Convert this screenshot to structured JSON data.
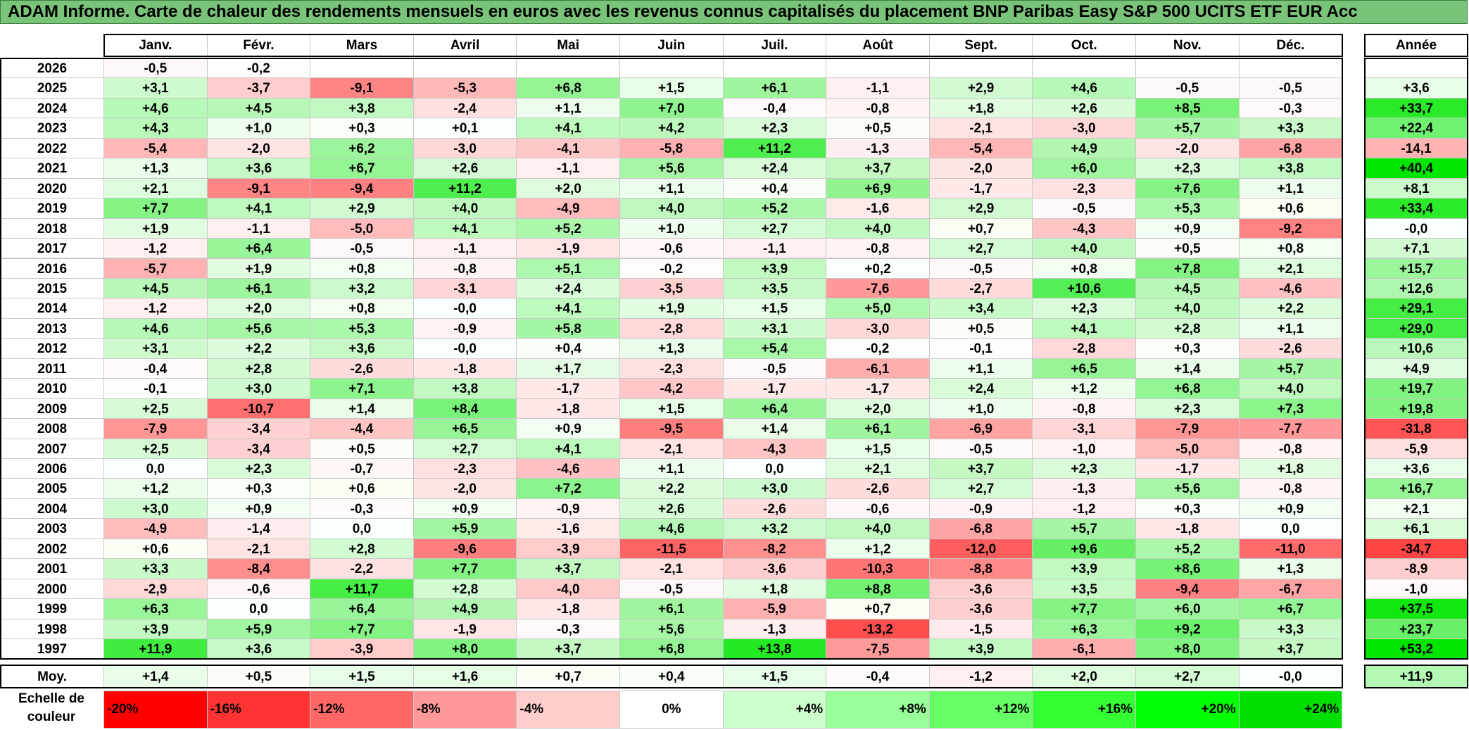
{
  "title": "ADAM Informe. Carte de chaleur des rendements mensuels en euros avec les revenus connus capitalisés du placement BNP Paribas Easy S&P 500 UCITS ETF EUR Acc",
  "chart_data": {
    "type": "heatmap",
    "title": "ADAM Informe. Carte de chaleur des rendements mensuels en euros avec les revenus connus capitalisés du placement BNP Paribas Easy S&P 500 UCITS ETF EUR Acc",
    "columns": [
      "Janv.",
      "Févr.",
      "Mars",
      "Avril",
      "Mai",
      "Juin",
      "Juil.",
      "Août",
      "Sept.",
      "Oct.",
      "Nov.",
      "Déc."
    ],
    "year_column": "Année",
    "rows": [
      {
        "year": "2026",
        "months": [
          "-0,5",
          "-0,2",
          "",
          "",
          "",
          "",
          "",
          "",
          "",
          "",
          "",
          ""
        ],
        "annual": ""
      },
      {
        "year": "2025",
        "months": [
          "+3,1",
          "-3,7",
          "-9,1",
          "-5,3",
          "+6,8",
          "+1,5",
          "+6,1",
          "-1,1",
          "+2,9",
          "+4,6",
          "-0,5",
          "-0,5"
        ],
        "annual": "+3,6"
      },
      {
        "year": "2024",
        "months": [
          "+4,6",
          "+4,5",
          "+3,8",
          "-2,4",
          "+1,1",
          "+7,0",
          "-0,4",
          "-0,8",
          "+1,8",
          "+2,6",
          "+8,5",
          "-0,3"
        ],
        "annual": "+33,7"
      },
      {
        "year": "2023",
        "months": [
          "+4,3",
          "+1,0",
          "+0,3",
          "+0,1",
          "+4,1",
          "+4,2",
          "+2,3",
          "+0,5",
          "-2,1",
          "-3,0",
          "+5,7",
          "+3,3"
        ],
        "annual": "+22,4"
      },
      {
        "year": "2022",
        "months": [
          "-5,4",
          "-2,0",
          "+6,2",
          "-3,0",
          "-4,1",
          "-5,8",
          "+11,2",
          "-1,3",
          "-5,4",
          "+4,9",
          "-2,0",
          "-6,8"
        ],
        "annual": "-14,1"
      },
      {
        "year": "2021",
        "months": [
          "+1,3",
          "+3,6",
          "+6,7",
          "+2,6",
          "-1,1",
          "+5,6",
          "+2,4",
          "+3,7",
          "-2,0",
          "+6,0",
          "+2,3",
          "+3,8"
        ],
        "annual": "+40,4"
      },
      {
        "year": "2020",
        "months": [
          "+2,1",
          "-9,1",
          "-9,4",
          "+11,2",
          "+2,0",
          "+1,1",
          "+0,4",
          "+6,9",
          "-1,7",
          "-2,3",
          "+7,6",
          "+1,1"
        ],
        "annual": "+8,1"
      },
      {
        "year": "2019",
        "months": [
          "+7,7",
          "+4,1",
          "+2,9",
          "+4,0",
          "-4,9",
          "+4,0",
          "+5,2",
          "-1,6",
          "+2,9",
          "-0,5",
          "+5,3",
          "+0,6"
        ],
        "annual": "+33,4"
      },
      {
        "year": "2018",
        "months": [
          "+1,9",
          "-1,1",
          "-5,0",
          "+4,1",
          "+5,2",
          "+1,0",
          "+2,7",
          "+4,0",
          "+0,7",
          "-4,3",
          "+0,9",
          "-9,2"
        ],
        "annual": "-0,0"
      },
      {
        "year": "2017",
        "months": [
          "-1,2",
          "+6,4",
          "-0,5",
          "-1,1",
          "-1,9",
          "-0,6",
          "-1,1",
          "-0,8",
          "+2,7",
          "+4,0",
          "+0,5",
          "+0,8"
        ],
        "annual": "+7,1"
      },
      {
        "year": "2016",
        "months": [
          "-5,7",
          "+1,9",
          "+0,8",
          "-0,8",
          "+5,1",
          "-0,2",
          "+3,9",
          "+0,2",
          "-0,5",
          "+0,8",
          "+7,8",
          "+2,1"
        ],
        "annual": "+15,7"
      },
      {
        "year": "2015",
        "months": [
          "+4,5",
          "+6,1",
          "+3,2",
          "-3,1",
          "+2,4",
          "-3,5",
          "+3,5",
          "-7,6",
          "-2,7",
          "+10,6",
          "+4,5",
          "-4,6"
        ],
        "annual": "+12,6"
      },
      {
        "year": "2014",
        "months": [
          "-1,2",
          "+2,0",
          "+0,8",
          "-0,0",
          "+4,1",
          "+1,9",
          "+1,5",
          "+5,0",
          "+3,4",
          "+2,3",
          "+4,0",
          "+2,2"
        ],
        "annual": "+29,1"
      },
      {
        "year": "2013",
        "months": [
          "+4,6",
          "+5,6",
          "+5,3",
          "-0,9",
          "+5,8",
          "-2,8",
          "+3,1",
          "-3,0",
          "+0,5",
          "+4,1",
          "+2,8",
          "+1,1"
        ],
        "annual": "+29,0"
      },
      {
        "year": "2012",
        "months": [
          "+3,1",
          "+2,2",
          "+3,6",
          "-0,0",
          "+0,4",
          "+1,3",
          "+5,4",
          "-0,2",
          "-0,1",
          "-2,8",
          "+0,3",
          "-2,6"
        ],
        "annual": "+10,6"
      },
      {
        "year": "2011",
        "months": [
          "-0,4",
          "+2,8",
          "-2,6",
          "-1,8",
          "+1,7",
          "-2,3",
          "-0,5",
          "-6,1",
          "+1,1",
          "+6,5",
          "+1,4",
          "+5,7"
        ],
        "annual": "+4,9"
      },
      {
        "year": "2010",
        "months": [
          "-0,1",
          "+3,0",
          "+7,1",
          "+3,8",
          "-1,7",
          "-4,2",
          "-1,7",
          "-1,7",
          "+2,4",
          "+1,2",
          "+6,8",
          "+4,0"
        ],
        "annual": "+19,7"
      },
      {
        "year": "2009",
        "months": [
          "+2,5",
          "-10,7",
          "+1,4",
          "+8,4",
          "-1,8",
          "+1,5",
          "+6,4",
          "+2,0",
          "+1,0",
          "-0,8",
          "+2,3",
          "+7,3"
        ],
        "annual": "+19,8"
      },
      {
        "year": "2008",
        "months": [
          "-7,9",
          "-3,4",
          "-4,4",
          "+6,5",
          "+0,9",
          "-9,5",
          "+1,4",
          "+6,1",
          "-6,9",
          "-3,1",
          "-7,9",
          "-7,7"
        ],
        "annual": "-31,8"
      },
      {
        "year": "2007",
        "months": [
          "+2,5",
          "-3,4",
          "+0,5",
          "+2,7",
          "+4,1",
          "-2,1",
          "-4,3",
          "+1,5",
          "-0,5",
          "-1,0",
          "-5,0",
          "-0,8"
        ],
        "annual": "-5,9"
      },
      {
        "year": "2006",
        "months": [
          "0,0",
          "+2,3",
          "-0,7",
          "-2,3",
          "-4,6",
          "+1,1",
          "0,0",
          "+2,1",
          "+3,7",
          "+2,3",
          "-1,7",
          "+1,8"
        ],
        "annual": "+3,6"
      },
      {
        "year": "2005",
        "months": [
          "+1,2",
          "+0,3",
          "+0,6",
          "-2,0",
          "+7,2",
          "+2,2",
          "+3,0",
          "-2,6",
          "+2,7",
          "-1,3",
          "+5,6",
          "-0,8"
        ],
        "annual": "+16,7"
      },
      {
        "year": "2004",
        "months": [
          "+3,0",
          "+0,9",
          "-0,3",
          "+0,9",
          "-0,9",
          "+2,6",
          "-2,6",
          "-0,6",
          "-0,9",
          "-1,2",
          "+0,3",
          "+0,9"
        ],
        "annual": "+2,1"
      },
      {
        "year": "2003",
        "months": [
          "-4,9",
          "-1,4",
          "0,0",
          "+5,9",
          "-1,6",
          "+4,6",
          "+3,2",
          "+4,0",
          "-6,8",
          "+5,7",
          "-1,8",
          "0,0"
        ],
        "annual": "+6,1"
      },
      {
        "year": "2002",
        "months": [
          "+0,6",
          "-2,1",
          "+2,8",
          "-9,6",
          "-3,9",
          "-11,5",
          "-8,2",
          "+1,2",
          "-12,0",
          "+9,6",
          "+5,2",
          "-11,0"
        ],
        "annual": "-34,7"
      },
      {
        "year": "2001",
        "months": [
          "+3,3",
          "-8,4",
          "-2,2",
          "+7,7",
          "+3,7",
          "-2,1",
          "-3,6",
          "-10,3",
          "-8,8",
          "+3,9",
          "+8,6",
          "+1,3"
        ],
        "annual": "-8,9"
      },
      {
        "year": "2000",
        "months": [
          "-2,9",
          "-0,6",
          "+11,7",
          "+2,8",
          "-4,0",
          "-0,5",
          "+1,8",
          "+8,8",
          "-3,6",
          "+3,5",
          "-9,4",
          "-6,7"
        ],
        "annual": "-1,0"
      },
      {
        "year": "1999",
        "months": [
          "+6,3",
          "0,0",
          "+6,4",
          "+4,9",
          "-1,8",
          "+6,1",
          "-5,9",
          "+0,7",
          "-3,6",
          "+7,7",
          "+6,0",
          "+6,7"
        ],
        "annual": "+37,5"
      },
      {
        "year": "1998",
        "months": [
          "+3,9",
          "+5,9",
          "+7,7",
          "-1,9",
          "-0,3",
          "+5,6",
          "-1,3",
          "-13,2",
          "-1,5",
          "+6,3",
          "+9,2",
          "+3,3"
        ],
        "annual": "+23,7"
      },
      {
        "year": "1997",
        "months": [
          "+11,9",
          "+3,6",
          "-3,9",
          "+8,0",
          "+3,7",
          "+6,8",
          "+13,8",
          "-7,5",
          "+3,9",
          "-6,1",
          "+8,0",
          "+3,7"
        ],
        "annual": "+53,2"
      }
    ],
    "average": {
      "label": "Moy.",
      "months": [
        "+1,4",
        "+0,5",
        "+1,5",
        "+1,6",
        "+0,7",
        "+0,4",
        "+1,5",
        "-0,4",
        "-1,2",
        "+2,0",
        "+2,7",
        "-0,0"
      ],
      "annual": "+11,9"
    },
    "legend": {
      "label": "Echelle de couleur",
      "stops": [
        {
          "label": "-20%",
          "value": -20,
          "color": "#ff0000"
        },
        {
          "label": "-16%",
          "value": -16,
          "color": "#ff3333"
        },
        {
          "label": "-12%",
          "value": -12,
          "color": "#ff6666"
        },
        {
          "label": "-8%",
          "value": -8,
          "color": "#ff9999"
        },
        {
          "label": "-4%",
          "value": -4,
          "color": "#ffcccc"
        },
        {
          "label": "0%",
          "value": 0,
          "color": "#ffffff"
        },
        {
          "label": "+4%",
          "value": 4,
          "color": "#ccffcc"
        },
        {
          "label": "+8%",
          "value": 8,
          "color": "#99ff99"
        },
        {
          "label": "+12%",
          "value": 12,
          "color": "#66ff66"
        },
        {
          "label": "+16%",
          "value": 16,
          "color": "#33ff33"
        },
        {
          "label": "+20%",
          "value": 20,
          "color": "#00ff00"
        },
        {
          "label": "+24%",
          "value": 24,
          "color": "#00e000"
        }
      ]
    },
    "scale": {
      "monthly_full_at": 16,
      "annual_full_at": 40
    }
  }
}
